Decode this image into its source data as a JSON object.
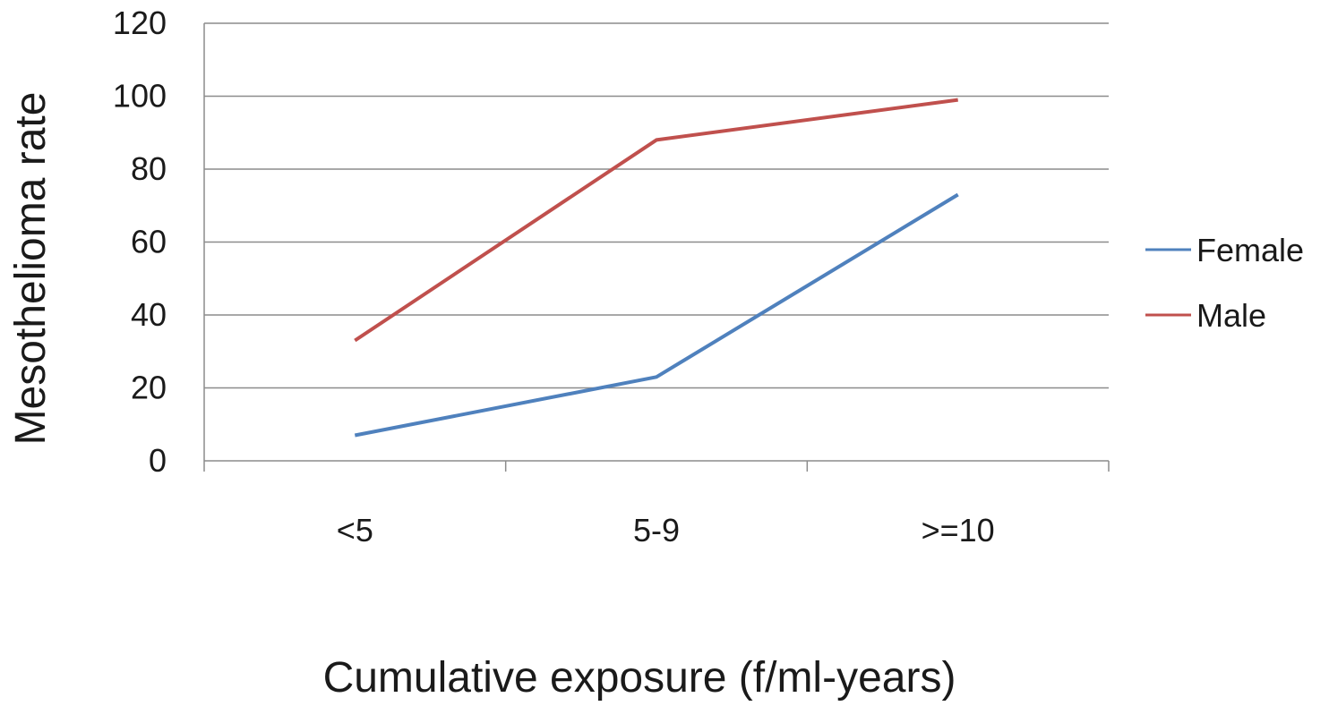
{
  "chart_data": {
    "type": "line",
    "title": "",
    "xlabel": "Cumulative exposure (f/ml-years)",
    "ylabel": "Mesothelioma rate",
    "categories": [
      "<5",
      "5-9",
      ">=10"
    ],
    "series": [
      {
        "name": "Female",
        "values": [
          7,
          23,
          73
        ],
        "color": "#4f81bd"
      },
      {
        "name": "Male",
        "values": [
          33,
          88,
          99
        ],
        "color": "#c0504d"
      }
    ],
    "ylim": [
      0,
      120
    ],
    "yticks": [
      "0",
      "20",
      "40",
      "60",
      "80",
      "100",
      "120"
    ],
    "grid": true,
    "legend": "right",
    "colors": {
      "grid": "#8c8c8c",
      "axis": "#8c8c8c"
    }
  }
}
